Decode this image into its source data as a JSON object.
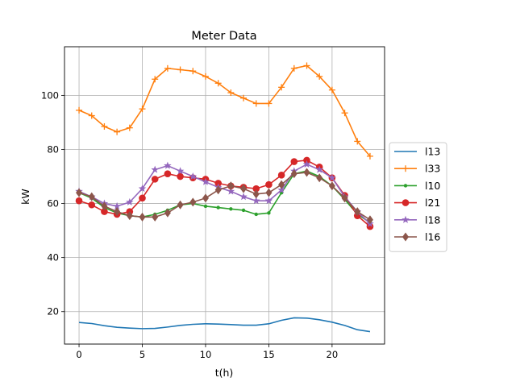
{
  "chart_data": {
    "type": "line",
    "title": "Meter Data",
    "xlabel": "t(h)",
    "ylabel": "kW",
    "xlim": [
      -1.15,
      24.15
    ],
    "ylim": [
      8,
      118
    ],
    "grid": true,
    "legend_position": "center-right-outside",
    "x": [
      0,
      1,
      2,
      3,
      4,
      5,
      6,
      7,
      8,
      9,
      10,
      11,
      12,
      13,
      14,
      15,
      16,
      17,
      18,
      19,
      20,
      21,
      22,
      23
    ],
    "x_ticks": [
      0,
      5,
      10,
      15,
      20
    ],
    "y_ticks": [
      20,
      40,
      60,
      80,
      100
    ],
    "series": [
      {
        "name": "l13",
        "color": "#1f77b4",
        "marker": "none",
        "values": [
          16.0,
          15.6,
          14.8,
          14.2,
          13.9,
          13.7,
          13.8,
          14.3,
          14.9,
          15.3,
          15.5,
          15.4,
          15.2,
          15.0,
          15.0,
          15.5,
          16.8,
          17.7,
          17.6,
          17.0,
          16.1,
          14.9,
          13.3,
          12.6
        ]
      },
      {
        "name": "l33",
        "color": "#ff7f0e",
        "marker": "plus",
        "values": [
          94.5,
          92.5,
          88.5,
          86.5,
          88.0,
          95.0,
          106.0,
          110.0,
          109.5,
          109.0,
          107.0,
          104.5,
          101.0,
          99.0,
          97.0,
          97.0,
          103.0,
          110.0,
          111.0,
          107.0,
          102.0,
          93.5,
          83.0,
          77.5
        ]
      },
      {
        "name": "l10",
        "color": "#2ca02c",
        "marker": "point",
        "values": [
          64.0,
          62.0,
          58.5,
          56.5,
          55.5,
          55.0,
          56.0,
          57.5,
          59.5,
          60.0,
          59.0,
          58.5,
          58.0,
          57.5,
          56.0,
          56.5,
          64.0,
          71.0,
          72.0,
          70.0,
          66.5,
          61.5,
          56.0,
          53.0
        ]
      },
      {
        "name": "l21",
        "color": "#d62728",
        "marker": "circle",
        "values": [
          61.0,
          59.5,
          57.0,
          56.0,
          57.0,
          62.0,
          69.0,
          71.0,
          70.0,
          69.5,
          69.0,
          67.5,
          66.5,
          66.0,
          65.5,
          67.0,
          70.5,
          75.5,
          76.0,
          73.5,
          69.5,
          63.0,
          55.5,
          51.5
        ]
      },
      {
        "name": "l18",
        "color": "#9467bd",
        "marker": "star",
        "values": [
          64.5,
          62.5,
          60.0,
          59.0,
          60.5,
          65.5,
          72.5,
          74.0,
          72.0,
          70.0,
          68.0,
          66.0,
          64.5,
          62.5,
          61.0,
          61.0,
          65.0,
          72.0,
          74.5,
          72.5,
          69.5,
          62.5,
          57.0,
          52.5
        ]
      },
      {
        "name": "l16",
        "color": "#8c564b",
        "marker": "diamond",
        "values": [
          64.0,
          62.5,
          59.0,
          57.0,
          55.5,
          55.0,
          55.0,
          56.5,
          59.5,
          60.5,
          62.0,
          65.0,
          66.5,
          65.5,
          63.5,
          64.0,
          67.0,
          71.0,
          71.5,
          69.5,
          66.5,
          62.0,
          57.0,
          54.0
        ]
      }
    ]
  }
}
